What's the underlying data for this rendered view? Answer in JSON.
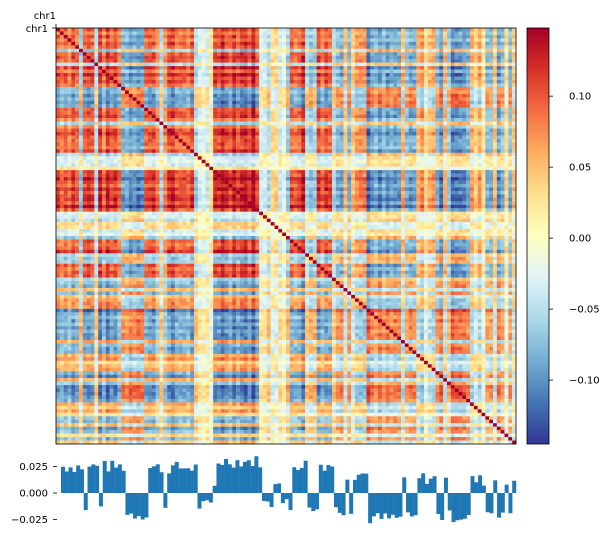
{
  "chart_data": [
    {
      "type": "heatmap",
      "title": "",
      "x_top_label": "chr1",
      "y_label": "chr1",
      "description_values": "Pearson-correlation matrix of chr1 with checkerboard (A/B compartment) structure",
      "colormap": "RdYlBu_r",
      "colormap_stops": [
        "#313695",
        "#4575b4",
        "#74add1",
        "#abd9e9",
        "#e0f3f8",
        "#ffffbf",
        "#fee090",
        "#fdae61",
        "#f46d43",
        "#d73027",
        "#a50026"
      ],
      "vmin": -0.145,
      "vmax": 0.148,
      "colorbar_ticks": [
        {
          "value": 0.1,
          "label": "0.10"
        },
        {
          "value": 0.05,
          "label": "0.05"
        },
        {
          "value": 0.0,
          "label": "0.00"
        },
        {
          "value": -0.05,
          "label": "−0.05"
        },
        {
          "value": -0.1,
          "label": "−0.10"
        }
      ],
      "grid": false
    },
    {
      "type": "area",
      "title": "",
      "series_name": "",
      "ylim": [
        -0.035,
        0.035
      ],
      "y_ticks": [
        {
          "value": 0.025,
          "label": "0.025"
        },
        {
          "value": 0.0,
          "label": "0.000"
        },
        {
          "value": -0.025,
          "label": "−0.025"
        }
      ],
      "color": "#1f77b4",
      "eigenvector_segments": [
        {
          "start": 0.0,
          "end": 0.14,
          "level": 0.025
        },
        {
          "start": 0.14,
          "end": 0.19,
          "level": -0.02
        },
        {
          "start": 0.19,
          "end": 0.3,
          "level": 0.024
        },
        {
          "start": 0.3,
          "end": 0.34,
          "level": -0.012
        },
        {
          "start": 0.34,
          "end": 0.44,
          "level": 0.03
        },
        {
          "start": 0.44,
          "end": 0.5,
          "level": -0.01
        },
        {
          "start": 0.5,
          "end": 0.6,
          "level": 0.027
        },
        {
          "start": 0.6,
          "end": 0.64,
          "level": -0.016
        },
        {
          "start": 0.64,
          "end": 0.67,
          "level": 0.018
        },
        {
          "start": 0.67,
          "end": 0.78,
          "level": -0.024
        },
        {
          "start": 0.78,
          "end": 0.82,
          "level": 0.014
        },
        {
          "start": 0.82,
          "end": 0.9,
          "level": -0.022
        },
        {
          "start": 0.9,
          "end": 0.93,
          "level": 0.012
        },
        {
          "start": 0.93,
          "end": 1.0,
          "level": -0.018
        }
      ],
      "grid": false
    }
  ]
}
